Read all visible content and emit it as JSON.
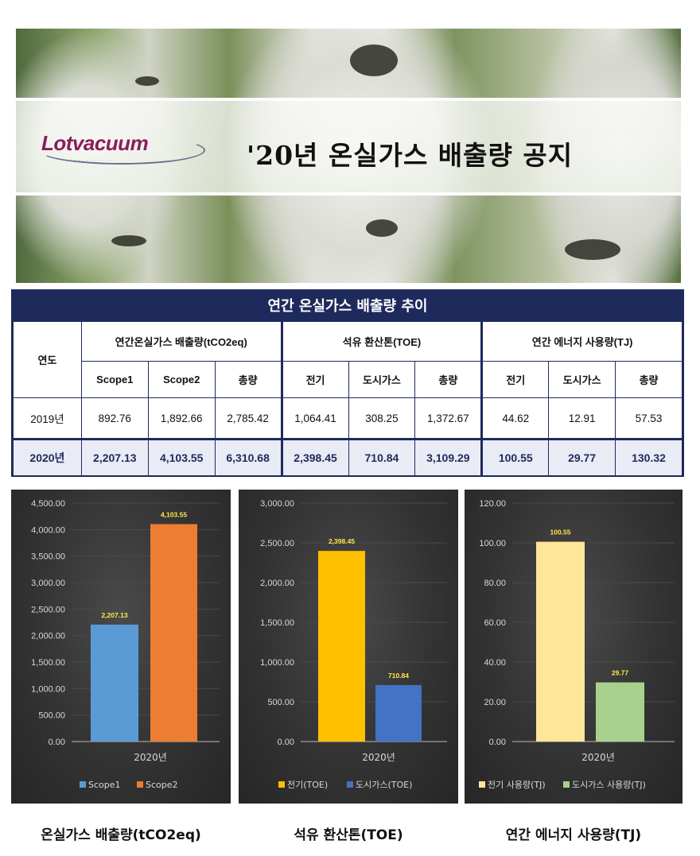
{
  "banner": {
    "logo_text": "Lotvacuum",
    "title": "'20년 온실가스 배출량 공지"
  },
  "table": {
    "title": "연간 온실가스 배출량 추이",
    "year_header": "연도",
    "groups": [
      "연간온실가스 배출량(tCO2eq)",
      "석유 환산톤(TOE)",
      "연간 에너지 사용량(TJ)"
    ],
    "subheaders": [
      "Scope1",
      "Scope2",
      "총량",
      "전기",
      "도시가스",
      "총량",
      "전기",
      "도시가스",
      "총량"
    ],
    "rows": [
      {
        "year": "2019년",
        "values": [
          "892.76",
          "1,892.66",
          "2,785.42",
          "1,064.41",
          "308.25",
          "1,372.67",
          "44.62",
          "12.91",
          "57.53"
        ]
      },
      {
        "year": "2020년",
        "values": [
          "2,207.13",
          "4,103.55",
          "6,310.68",
          "2,398.45",
          "710.84",
          "3,109.29",
          "100.55",
          "29.77",
          "130.32"
        ]
      }
    ]
  },
  "chart_data": [
    {
      "type": "bar",
      "categories": [
        "2020년"
      ],
      "series": [
        {
          "name": "Scope1",
          "values": [
            2207.13
          ],
          "label": "2,207.13",
          "color": "#5b9bd5"
        },
        {
          "name": "Scope2",
          "values": [
            4103.55
          ],
          "label": "4,103.55",
          "color": "#ed7d31"
        }
      ],
      "ylim": [
        0,
        4500
      ],
      "yticks": [
        "0.00",
        "500.00",
        "1,000.00",
        "1,500.00",
        "2,000.00",
        "2,500.00",
        "3,000.00",
        "3,500.00",
        "4,000.00",
        "4,500.00"
      ],
      "legend": "bottom",
      "caption": "온실가스 배출량(tCO2eq)"
    },
    {
      "type": "bar",
      "categories": [
        "2020년"
      ],
      "series": [
        {
          "name": "전기(TOE)",
          "values": [
            2398.45
          ],
          "label": "2,398.45",
          "color": "#ffc000"
        },
        {
          "name": "도시가스(TOE)",
          "values": [
            710.84
          ],
          "label": "710.84",
          "color": "#4472c4"
        }
      ],
      "ylim": [
        0,
        3000
      ],
      "yticks": [
        "0.00",
        "500.00",
        "1,000.00",
        "1,500.00",
        "2,000.00",
        "2,500.00",
        "3,000.00"
      ],
      "legend": "bottom",
      "caption": "석유 환산톤(TOE)"
    },
    {
      "type": "bar",
      "categories": [
        "2020년"
      ],
      "series": [
        {
          "name": "전기 사용량(TJ)",
          "values": [
            100.55
          ],
          "label": "100.55",
          "color": "#ffe699"
        },
        {
          "name": "도시가스 사용량(TJ)",
          "values": [
            29.77
          ],
          "label": "29.77",
          "color": "#a9d18e"
        }
      ],
      "ylim": [
        0,
        120
      ],
      "yticks": [
        "0.00",
        "20.00",
        "40.00",
        "60.00",
        "80.00",
        "100.00",
        "120.00"
      ],
      "legend": "bottom",
      "caption": "연간 에너지 사용량(TJ)"
    }
  ],
  "colors": {
    "table_navy": "#1f2a5c",
    "label_yellow": "#ffe94a",
    "panel_bg": "#333333"
  }
}
